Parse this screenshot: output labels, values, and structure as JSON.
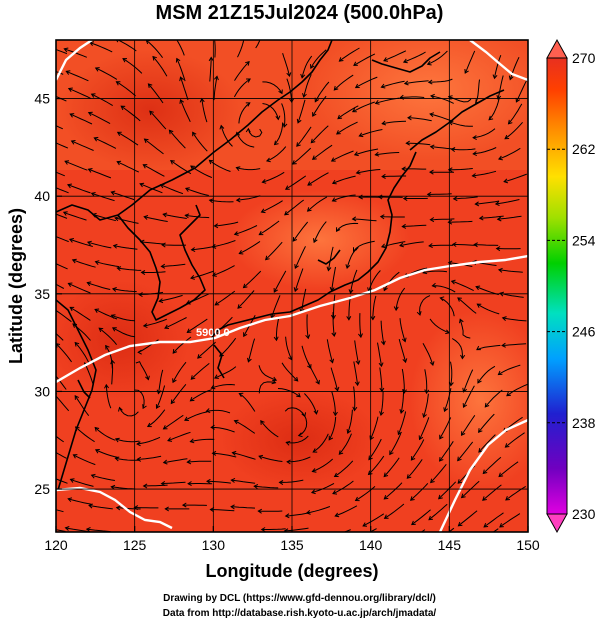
{
  "title": "MSM 21Z15Jul2024 (500.0hPa)",
  "x_axis": {
    "label": "Longitude (degrees)",
    "ticks": [
      "120",
      "125",
      "130",
      "135",
      "140",
      "145",
      "150"
    ]
  },
  "y_axis": {
    "label": "Latitude  (degrees)",
    "ticks": [
      "25",
      "30",
      "35",
      "40",
      "45"
    ]
  },
  "colorbar": {
    "ticks": [
      "230",
      "238",
      "246",
      "254",
      "262",
      "270"
    ],
    "colors": [
      "#e000e0",
      "#7000c0",
      "#2020d0",
      "#00a0ff",
      "#00e0c0",
      "#00d000",
      "#a0e000",
      "#ffe000",
      "#ff9000",
      "#ff4000",
      "#e83020"
    ]
  },
  "contour_label": "5900.0",
  "credits": {
    "line1": "Drawing by DCL (https://www.gfd-dennou.org/library/dcl/)",
    "line2": "Data from http://database.rish.kyoto-u.ac.jp/arch/jmadata/"
  },
  "colors": {
    "field_main": "#f04020",
    "field_warm": "#ff6030",
    "field_north": "#f46a30",
    "contour": "#ffffff",
    "coast": "#000000"
  }
}
